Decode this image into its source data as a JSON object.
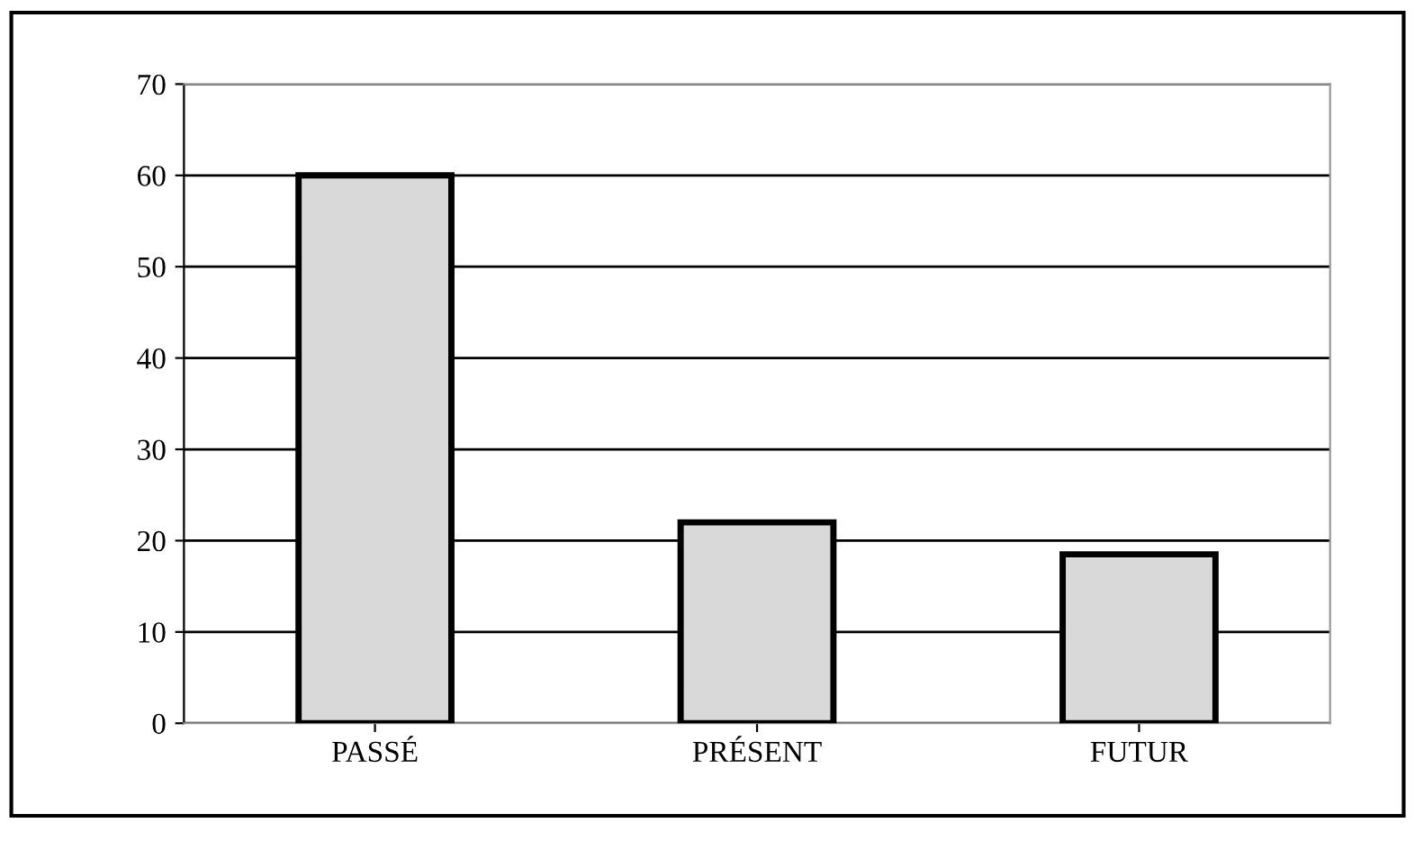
{
  "chart_data": {
    "type": "bar",
    "categories": [
      "PASSÉ",
      "PRÉSENT",
      "FUTUR"
    ],
    "values": [
      60,
      22,
      18.5
    ],
    "color": "#d9d9d9",
    "ylim": [
      0,
      70
    ],
    "yticks": [
      0,
      10,
      20,
      30,
      40,
      50,
      60,
      70
    ],
    "grid": "y",
    "legend": false
  }
}
